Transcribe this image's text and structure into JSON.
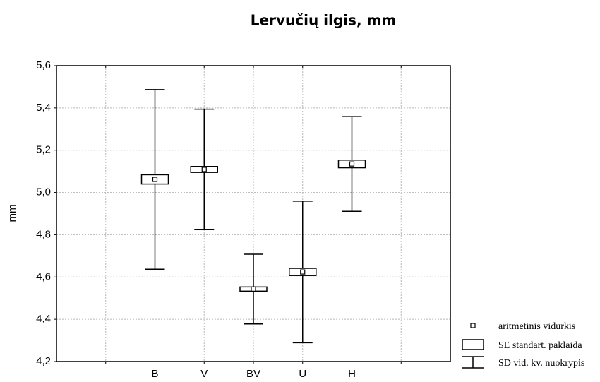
{
  "chart_data": {
    "type": "box",
    "title": "Lervučių ilgis, mm",
    "ylabel": "mm",
    "categories": [
      null,
      "B",
      "V",
      "BV",
      "U",
      "H",
      null
    ],
    "series": [
      {
        "name": "aritmetinis vidurkis",
        "values": [
          null,
          5.062,
          5.109,
          4.543,
          4.624,
          5.135,
          null
        ]
      },
      {
        "name": "SE standart. paklaida",
        "values": [
          null,
          0.022,
          0.014,
          0.01,
          0.017,
          0.018,
          null
        ]
      },
      {
        "name": "SD vid. kv. nuokrypis",
        "values": [
          null,
          0.425,
          0.285,
          0.165,
          0.335,
          0.224,
          null
        ]
      }
    ],
    "ylim": [
      4.2,
      5.6
    ],
    "yticks": [
      {
        "value": 4.2,
        "label": "4,2"
      },
      {
        "value": 4.4,
        "label": "4,4"
      },
      {
        "value": 4.6,
        "label": "4,6"
      },
      {
        "value": 4.8,
        "label": "4,8"
      },
      {
        "value": 5.0,
        "label": "5,0"
      },
      {
        "value": 5.2,
        "label": "5,2"
      },
      {
        "value": 5.4,
        "label": "5,4"
      },
      {
        "value": 5.6,
        "label": "5,6"
      }
    ],
    "grid": true
  }
}
